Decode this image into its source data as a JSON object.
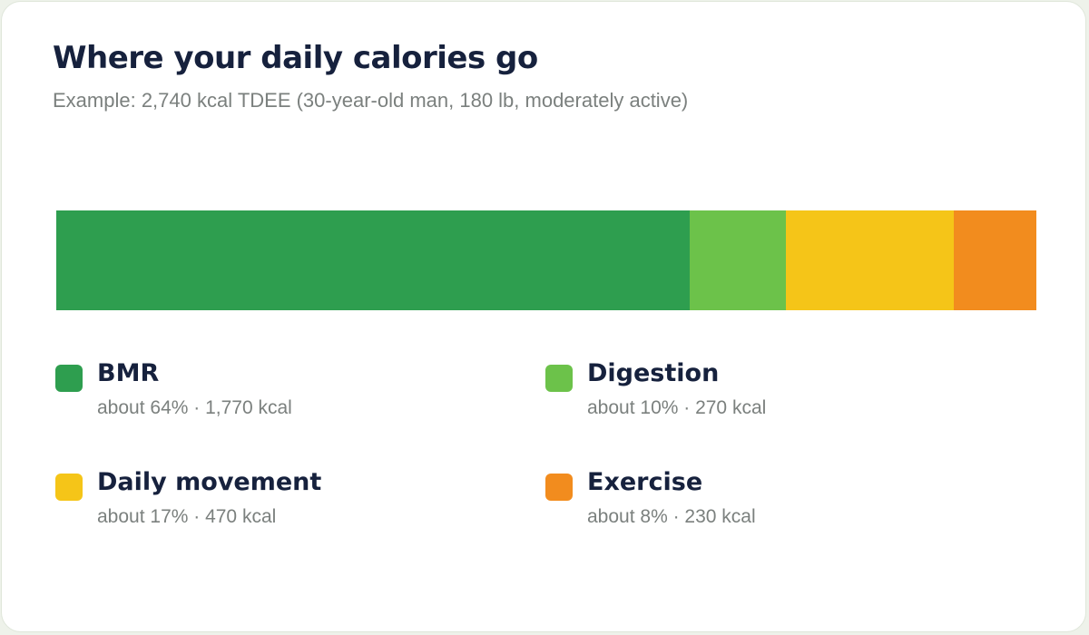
{
  "chart_data": {
    "type": "bar",
    "orientation": "horizontal-stacked",
    "title": "Where your daily calories go",
    "subtitle": "Example: 2,740 kcal TDEE (30-year-old man, 180 lb, moderately active)",
    "total_kcal": 2740,
    "series": [
      {
        "name": "BMR",
        "percent": 64,
        "kcal": 1770,
        "color": "#2e9e4f",
        "detail": "about 64% · 1,770 kcal"
      },
      {
        "name": "Digestion",
        "percent": 10,
        "kcal": 270,
        "color": "#6cc24a",
        "detail": "about 10% · 270 kcal"
      },
      {
        "name": "Daily movement",
        "percent": 17,
        "kcal": 470,
        "color": "#f5c518",
        "detail": "about 17% · 470 kcal"
      },
      {
        "name": "Exercise",
        "percent": 8,
        "kcal": 230,
        "color": "#f28c1e",
        "detail": "about 8% · 230 kcal"
      }
    ],
    "legend_position": "bottom",
    "grid": false
  },
  "colors": {
    "heading": "#16213d",
    "muted": "#7b807e"
  }
}
